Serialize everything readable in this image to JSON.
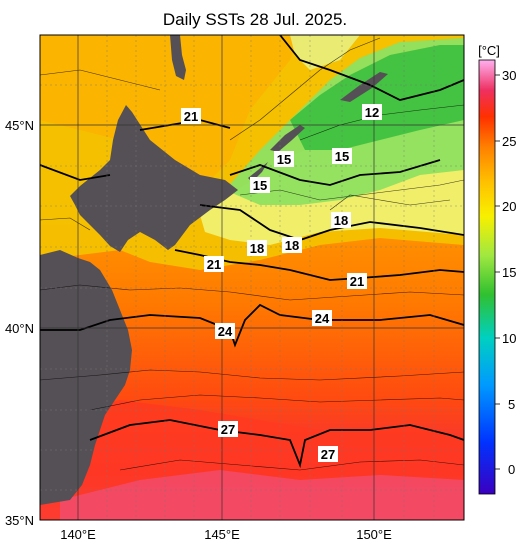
{
  "title": "Daily SSTs 28 Jul. 2025.",
  "lon_ticks": [
    "140°E",
    "145°E",
    "150°E"
  ],
  "lat_ticks": [
    "45°N",
    "40°N",
    "35°N"
  ],
  "colorbar": {
    "unit": "[°C]",
    "ticks": [
      "30",
      "25",
      "20",
      "15",
      "10",
      "5",
      "0"
    ],
    "colors": [
      "#2a00b4",
      "#0044ff",
      "#0099ff",
      "#00d7d7",
      "#20c040",
      "#8ee84c",
      "#f8f000",
      "#ffc000",
      "#ff8000",
      "#ff3000",
      "#ee2a5a",
      "#ff66c8",
      "#ffb0f0"
    ]
  },
  "land_color": "#555055",
  "contour_labels": {
    "c12": "12",
    "c15a": "15",
    "c15b": "15",
    "c15c": "15",
    "c18a": "18",
    "c18b": "18",
    "c18c": "18",
    "c21a": "21",
    "c21b": "21",
    "c21c": "21",
    "c24a": "24",
    "c24b": "24",
    "c27a": "27",
    "c27b": "27"
  }
}
